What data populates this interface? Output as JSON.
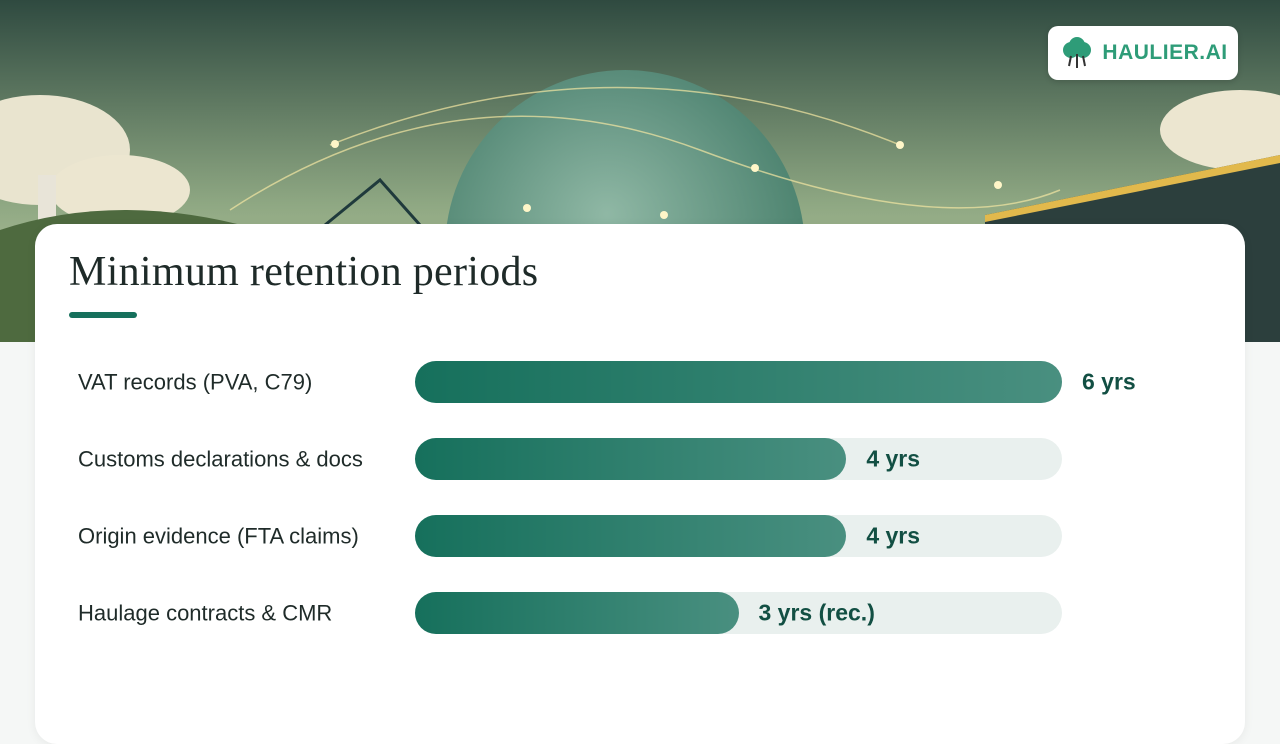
{
  "logo": "HAULIER.AI",
  "chart_data": {
    "type": "bar",
    "orientation": "horizontal",
    "title": "Minimum retention periods",
    "categories": [
      "VAT records (PVA, C79)",
      "Customs declarations & docs",
      "Origin evidence (FTA claims)",
      "Haulage contracts & CMR"
    ],
    "values": [
      6,
      4,
      4,
      3
    ],
    "value_labels": [
      "6 yrs",
      "4 yrs",
      "4 yrs",
      "3 yrs (rec.)"
    ],
    "xlim": [
      0,
      6
    ],
    "color": "#16705c"
  }
}
